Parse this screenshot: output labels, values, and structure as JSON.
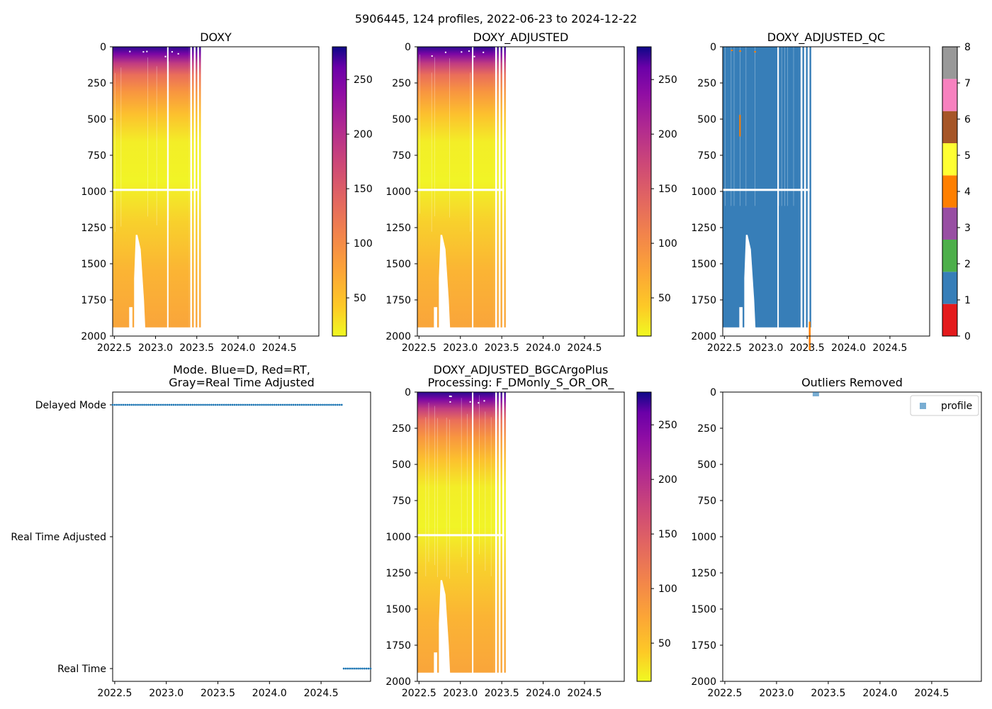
{
  "suptitle": "5906445, 124 profiles, 2022-06-23 to 2024-12-22",
  "colors": {
    "qc_blue": "#377eb8",
    "qc_orange": "#ff7f00",
    "mode_blue": "#1f77b4",
    "legend_marker": "#1f77b4"
  },
  "chart_data": [
    {
      "id": "doxy",
      "type": "heatmap",
      "title": "DOXY",
      "x_ticks": [
        "2022.5",
        "2023.0",
        "2023.5",
        "2024.0",
        "2024.5"
      ],
      "x_tick_values": [
        2022.5,
        2023.0,
        2023.5,
        2024.0,
        2024.5
      ],
      "xlim": [
        2022.48,
        2024.98
      ],
      "y_ticks": [
        "0",
        "250",
        "500",
        "750",
        "1000",
        "1250",
        "1500",
        "1750",
        "2000"
      ],
      "y_tick_values": [
        0,
        250,
        500,
        750,
        1000,
        1250,
        1500,
        1750,
        2000
      ],
      "ylim": [
        2000,
        0
      ],
      "colormap": "plasma_r",
      "colorbar_range": [
        15,
        280
      ],
      "colorbar_ticks": [
        "50",
        "100",
        "150",
        "200",
        "250"
      ],
      "colorbar_tick_values": [
        50,
        100,
        150,
        200,
        250
      ],
      "data_extent_x": [
        2022.48,
        2023.53
      ]
    },
    {
      "id": "doxy_adjusted",
      "type": "heatmap",
      "title": "DOXY_ADJUSTED",
      "x_ticks": [
        "2022.5",
        "2023.0",
        "2023.5",
        "2024.0",
        "2024.5"
      ],
      "x_tick_values": [
        2022.5,
        2023.0,
        2023.5,
        2024.0,
        2024.5
      ],
      "xlim": [
        2022.48,
        2024.98
      ],
      "y_ticks": [
        "0",
        "250",
        "500",
        "750",
        "1000",
        "1250",
        "1500",
        "1750",
        "2000"
      ],
      "y_tick_values": [
        0,
        250,
        500,
        750,
        1000,
        1250,
        1500,
        1750,
        2000
      ],
      "ylim": [
        2000,
        0
      ],
      "colormap": "plasma_r",
      "colorbar_range": [
        15,
        280
      ],
      "colorbar_ticks": [
        "50",
        "100",
        "150",
        "200",
        "250"
      ],
      "colorbar_tick_values": [
        50,
        100,
        150,
        200,
        250
      ],
      "data_extent_x": [
        2022.48,
        2023.53
      ]
    },
    {
      "id": "doxy_adjusted_qc",
      "type": "heatmap",
      "title": "DOXY_ADJUSTED_QC",
      "x_ticks": [
        "2022.5",
        "2023.0",
        "2023.5",
        "2024.0",
        "2024.5"
      ],
      "x_tick_values": [
        2022.5,
        2023.0,
        2023.5,
        2024.0,
        2024.5
      ],
      "xlim": [
        2022.48,
        2024.98
      ],
      "y_ticks": [
        "0",
        "250",
        "500",
        "750",
        "1000",
        "1250",
        "1500",
        "1750",
        "2000"
      ],
      "y_tick_values": [
        0,
        250,
        500,
        750,
        1000,
        1250,
        1500,
        1750,
        2000
      ],
      "ylim": [
        2000,
        0
      ],
      "colormap": "Set1 (QC flags)",
      "colorbar_range": [
        0,
        8
      ],
      "colorbar_ticks": [
        "0",
        "1",
        "2",
        "3",
        "4",
        "5",
        "6",
        "7",
        "8"
      ],
      "colorbar_tick_values": [
        0,
        1,
        2,
        3,
        4,
        5,
        6,
        7,
        8
      ],
      "qc_colors": [
        "#e41a1c",
        "#377eb8",
        "#4daf4a",
        "#984ea3",
        "#ff7f00",
        "#ffff33",
        "#a65628",
        "#f781bf",
        "#999999"
      ],
      "dominant_flag": 1,
      "data_extent_x": [
        2022.48,
        2023.53
      ]
    },
    {
      "id": "mode",
      "type": "scatter",
      "title": "Mode. Blue=D, Red=RT,\nGray=Real Time Adjusted",
      "x_ticks": [
        "2022.5",
        "2023.0",
        "2023.5",
        "2024.0",
        "2024.5"
      ],
      "x_tick_values": [
        2022.5,
        2023.0,
        2023.5,
        2024.0,
        2024.5
      ],
      "xlim": [
        2022.48,
        2024.98
      ],
      "y_categories": [
        "Delayed Mode",
        "Real Time Adjusted",
        "Real Time"
      ],
      "series": [
        {
          "name": "Delayed Mode",
          "x_range": [
            2022.48,
            2024.7
          ],
          "count": 110
        },
        {
          "name": "Real Time",
          "x_range": [
            2024.72,
            2024.98
          ],
          "count": 14
        }
      ]
    },
    {
      "id": "bgc_plus",
      "type": "heatmap",
      "title": "DOXY_ADJUSTED_BGCArgoPlus\nProcessing: F_DMonly_S_OR_OR_",
      "x_ticks": [
        "2022.5",
        "2023.0",
        "2023.5",
        "2024.0",
        "2024.5"
      ],
      "x_tick_values": [
        2022.5,
        2023.0,
        2023.5,
        2024.0,
        2024.5
      ],
      "xlim": [
        2022.48,
        2024.98
      ],
      "y_ticks": [
        "0",
        "250",
        "500",
        "750",
        "1000",
        "1250",
        "1500",
        "1750",
        "2000"
      ],
      "y_tick_values": [
        0,
        250,
        500,
        750,
        1000,
        1250,
        1500,
        1750,
        2000
      ],
      "ylim": [
        2000,
        0
      ],
      "colormap": "plasma_r",
      "colorbar_range": [
        15,
        280
      ],
      "colorbar_ticks": [
        "50",
        "100",
        "150",
        "200",
        "250"
      ],
      "colorbar_tick_values": [
        50,
        100,
        150,
        200,
        250
      ],
      "data_extent_x": [
        2022.48,
        2023.53
      ]
    },
    {
      "id": "outliers",
      "type": "scatter",
      "title": "Outliers Removed",
      "x_ticks": [
        "2022.5",
        "2023.0",
        "2023.5",
        "2024.0",
        "2024.5"
      ],
      "x_tick_values": [
        2022.5,
        2023.0,
        2023.5,
        2024.0,
        2024.5
      ],
      "xlim": [
        2022.48,
        2024.98
      ],
      "y_ticks": [
        "0",
        "250",
        "500",
        "750",
        "1000",
        "1250",
        "1500",
        "1750",
        "2000"
      ],
      "y_tick_values": [
        0,
        250,
        500,
        750,
        1000,
        1250,
        1500,
        1750,
        2000
      ],
      "ylim": [
        2000,
        0
      ],
      "points": [
        {
          "x": 2023.38,
          "y": 5
        }
      ],
      "legend": {
        "label": "profile",
        "placement": "top-right"
      }
    }
  ]
}
